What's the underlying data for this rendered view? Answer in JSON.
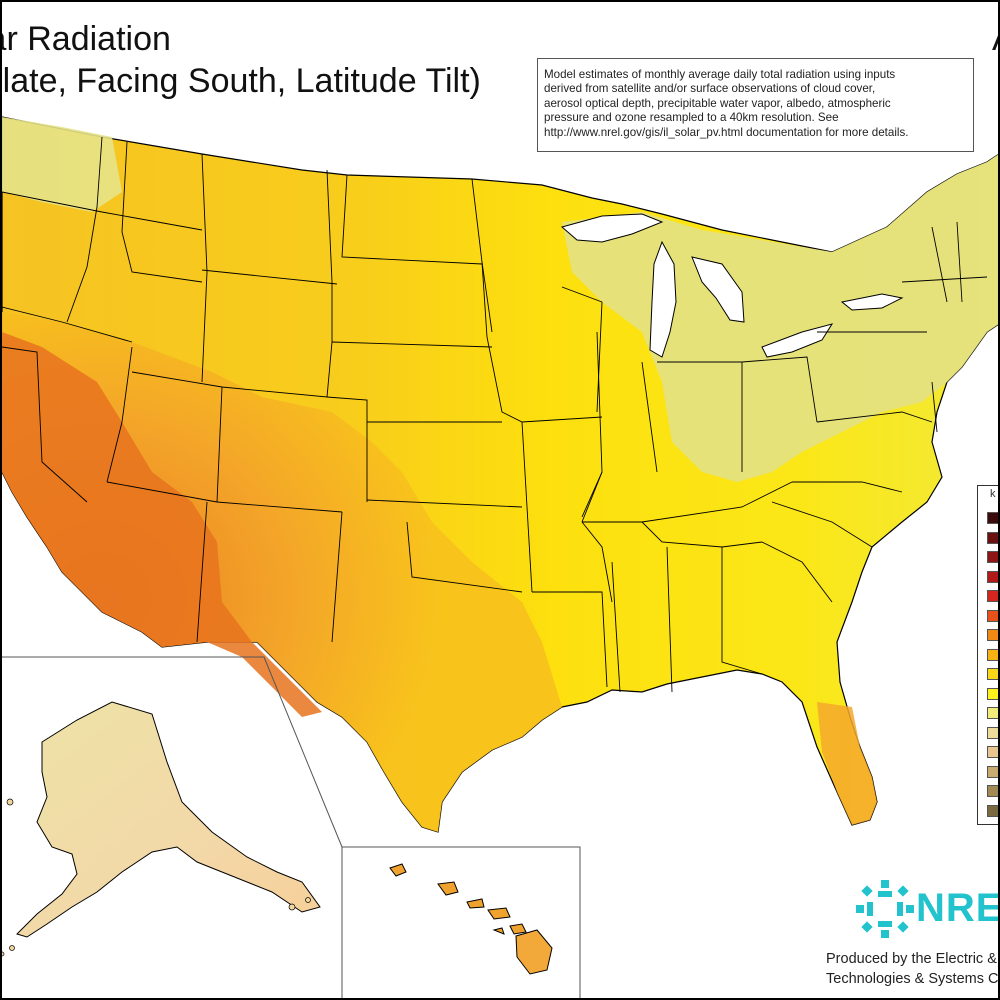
{
  "title": {
    "line1": "lar Radiation",
    "line2": "Plate, Facing South, Latitude Tilt)",
    "right_fragment": "A"
  },
  "note": {
    "lines": [
      "Model estimates of monthly average daily total radiation using inputs",
      "derived from satellite and/or surface observations of cloud cover,",
      "aerosol optical depth, precipitable water vapor, albedo, atmospheric",
      "pressure and ozone resampled to a 40km resolution.  See",
      "http://www.nrel.gov/gis/il_solar_pv.html documentation for more details."
    ]
  },
  "legend": {
    "label": "k",
    "swatch_colors": [
      "#3b0b0b",
      "#6b1010",
      "#8e1616",
      "#b21a1a",
      "#d4261e",
      "#e8521a",
      "#f08a14",
      "#f6b212",
      "#fbd71a",
      "#fff01e",
      "#f2ed7a",
      "#eedd9a",
      "#e9c690",
      "#c9aa70",
      "#a38a55",
      "#7a6a40"
    ]
  },
  "logo": {
    "text": "NREL"
  },
  "credits": {
    "line1": "Produced by the Electric &",
    "line2": "Technologies & Systems C"
  },
  "colors": {
    "deep_orange": "#e9731f",
    "orange": "#f3a12a",
    "yellow_orange": "#f8c21c",
    "yellow": "#fde50c",
    "pale_yellow": "#e6e388",
    "tan": "#f5d3a2",
    "boundary": "#000000",
    "logo": "#22c3cc"
  }
}
